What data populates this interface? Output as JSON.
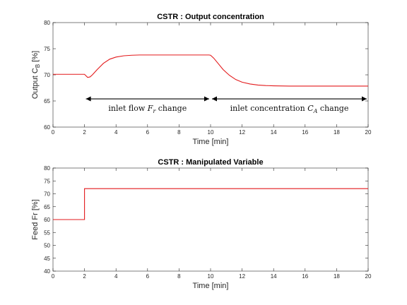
{
  "chart_data": [
    {
      "type": "line",
      "title": "CSTR : Output concentration",
      "xlabel": "Time [min]",
      "ylabel_main": "Output C",
      "ylabel_sub": "B",
      "ylabel_unit": " [%]",
      "xlim": [
        0,
        20
      ],
      "ylim": [
        60,
        80
      ],
      "xticks": [
        0,
        2,
        4,
        6,
        8,
        10,
        12,
        14,
        16,
        18,
        20
      ],
      "yticks": [
        60,
        65,
        70,
        75,
        80
      ],
      "grid": false,
      "color": "#e31a1c",
      "series": [
        {
          "x": [
            0,
            2.0,
            2.1,
            2.2,
            2.35,
            2.5,
            2.8,
            3.2,
            3.6,
            4.0,
            4.5,
            5.0,
            5.5,
            6.0,
            7.0,
            8.0,
            9.0,
            9.9,
            10.0,
            10.2,
            10.5,
            10.8,
            11.2,
            11.6,
            12.0,
            12.5,
            13.0,
            13.5,
            14.0,
            15.0,
            16.0,
            17.0,
            18.0,
            19.0,
            20.0
          ],
          "y": [
            70.1,
            70.1,
            69.8,
            69.5,
            69.6,
            70.0,
            71.0,
            72.2,
            73.0,
            73.4,
            73.65,
            73.75,
            73.8,
            73.8,
            73.8,
            73.8,
            73.8,
            73.8,
            73.75,
            73.2,
            72.1,
            71.0,
            69.9,
            69.1,
            68.6,
            68.25,
            68.05,
            67.95,
            67.9,
            67.85,
            67.85,
            67.85,
            67.85,
            67.85,
            67.85
          ]
        }
      ],
      "annotations": [
        {
          "from": 2,
          "to": 10,
          "y": 65.4,
          "text_pre": "inlet flow ",
          "symbol": "F",
          "symbol_sub": "r",
          "text_post": " change"
        },
        {
          "from": 10,
          "to": 20,
          "y": 65.4,
          "text_pre": "inlet concentration ",
          "symbol": "C",
          "symbol_sub": "A",
          "text_post": " change"
        }
      ]
    },
    {
      "type": "line",
      "title": "CSTR : Manipulated Variable",
      "xlabel": "Time [min]",
      "ylabel": "Feed Fr [%]",
      "xlim": [
        0,
        20
      ],
      "ylim": [
        40,
        80
      ],
      "xticks": [
        0,
        2,
        4,
        6,
        8,
        10,
        12,
        14,
        16,
        18,
        20
      ],
      "yticks": [
        40,
        45,
        50,
        55,
        60,
        65,
        70,
        75,
        80
      ],
      "grid": false,
      "color": "#e31a1c",
      "series": [
        {
          "x": [
            0,
            2,
            2,
            20
          ],
          "y": [
            60,
            60,
            72,
            72
          ]
        }
      ]
    }
  ]
}
